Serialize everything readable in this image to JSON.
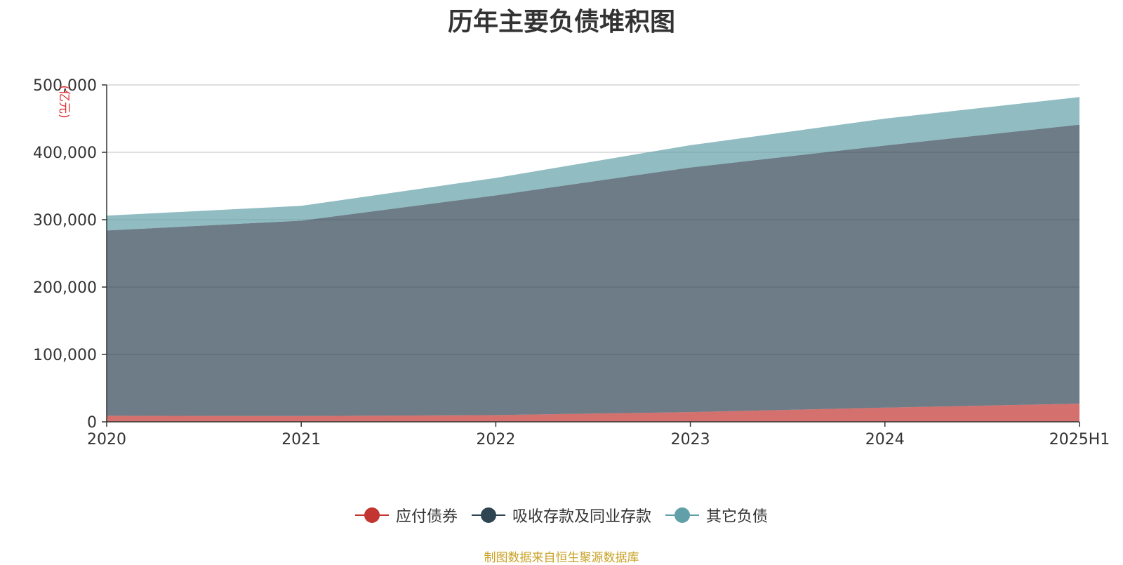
{
  "chart_data": {
    "type": "area",
    "stacked": true,
    "title": "历年主要负债堆积图",
    "ylabel": "(亿元)",
    "categories": [
      "2020",
      "2021",
      "2022",
      "2023",
      "2024",
      "2025H1"
    ],
    "ylim": [
      0,
      500000
    ],
    "yticks": [
      0,
      100000,
      200000,
      300000,
      400000,
      500000
    ],
    "ytick_labels": [
      "0",
      "100,000",
      "200,000",
      "300,000",
      "400,000",
      "500,000"
    ],
    "grid": true,
    "legend_position": "bottom-center",
    "series": [
      {
        "name": "应付债券",
        "color": "#c23531",
        "values": [
          9000,
          8500,
          10000,
          14500,
          21000,
          27000
        ]
      },
      {
        "name": "吸收存款及同业存款",
        "color": "#2f4554",
        "values": [
          275000,
          290000,
          326000,
          363000,
          389000,
          414000
        ]
      },
      {
        "name": "其它负债",
        "color": "#61a0a8",
        "values": [
          22000,
          22000,
          26000,
          33000,
          40000,
          41000
        ]
      }
    ],
    "source_note": "制图数据来自恒生聚源数据库"
  }
}
